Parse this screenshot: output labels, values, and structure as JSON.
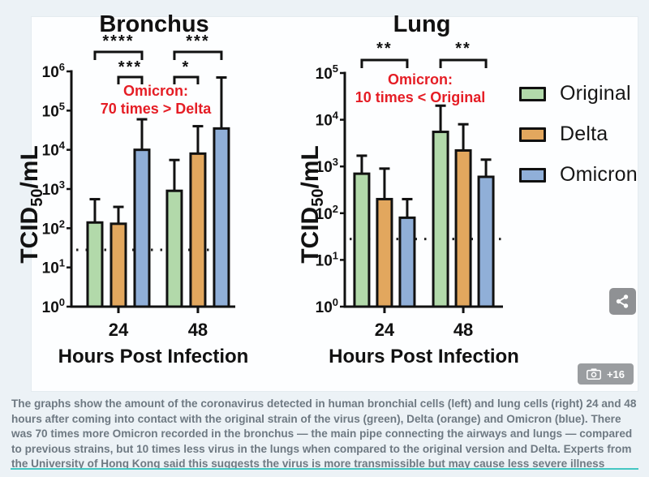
{
  "page": {
    "background": "#ecf2f6",
    "accent_teal": "#43c6c2"
  },
  "chart_data": [
    {
      "type": "bar",
      "title": "Bronchus",
      "xlabel": "Hours Post Infection",
      "ylabel": "TCID50/mL",
      "ylabel_parts": [
        {
          "t": "TCID"
        },
        {
          "t": "50",
          "sub": true
        },
        {
          "t": "/mL"
        }
      ],
      "y_scale": "log10",
      "ylim_exponents": [
        0,
        6
      ],
      "grid": false,
      "categories": [
        "24",
        "48"
      ],
      "series": [
        {
          "name": "Original",
          "color": "#b2d9aa",
          "values": [
            140,
            900
          ],
          "upper_errors": [
            550,
            5500
          ]
        },
        {
          "name": "Delta",
          "color": "#e2a75e",
          "values": [
            130,
            8000
          ],
          "upper_errors": [
            350,
            40000
          ]
        },
        {
          "name": "Omicron",
          "color": "#90afd8",
          "values": [
            10000,
            35000
          ],
          "upper_errors": [
            60000,
            700000
          ]
        }
      ],
      "detection_limit": 28,
      "significance": [
        {
          "category": "24",
          "label": "****",
          "between": [
            "Original",
            "Omicron"
          ],
          "row": 0
        },
        {
          "category": "24",
          "label": "***",
          "between": [
            "Delta",
            "Omicron"
          ],
          "row": 1
        },
        {
          "category": "48",
          "label": "***",
          "between": [
            "Original",
            "Omicron"
          ],
          "row": 0
        },
        {
          "category": "48",
          "label": "*",
          "between": [
            "Original",
            "Delta"
          ],
          "row": 1
        }
      ],
      "annotation": {
        "lines": [
          "Omicron:",
          "70 times > Delta"
        ],
        "color": "#e51d25"
      }
    },
    {
      "type": "bar",
      "title": "Lung",
      "xlabel": "Hours Post Infection",
      "ylabel": "TCID50/mL",
      "ylabel_parts": [
        {
          "t": "TCID"
        },
        {
          "t": "50",
          "sub": true
        },
        {
          "t": "/mL"
        }
      ],
      "y_scale": "log10",
      "ylim_exponents": [
        0,
        5
      ],
      "grid": false,
      "categories": [
        "24",
        "48"
      ],
      "series": [
        {
          "name": "Original",
          "color": "#b2d9aa",
          "values": [
            700,
            5500
          ],
          "upper_errors": [
            1700,
            20000
          ]
        },
        {
          "name": "Delta",
          "color": "#e2a75e",
          "values": [
            200,
            2200
          ],
          "upper_errors": [
            900,
            8000
          ]
        },
        {
          "name": "Omicron",
          "color": "#90afd8",
          "values": [
            80,
            600
          ],
          "upper_errors": [
            200,
            1400
          ]
        }
      ],
      "detection_limit": 28,
      "significance": [
        {
          "category": "24",
          "label": "**",
          "between": [
            "Original",
            "Omicron"
          ],
          "row": 0
        },
        {
          "category": "48",
          "label": "**",
          "between": [
            "Original",
            "Omicron"
          ],
          "row": 0
        }
      ],
      "annotation": {
        "lines": [
          "Omicron:",
          "10 times < Original"
        ],
        "color": "#e51d25"
      }
    }
  ],
  "legend": {
    "position": "right",
    "items": [
      {
        "label": "Original",
        "color": "#b2d9aa"
      },
      {
        "label": "Delta",
        "color": "#e2a75e"
      },
      {
        "label": "Omicron",
        "color": "#90afd8"
      }
    ]
  },
  "overlays": {
    "share_icon": "share-nodes",
    "camera_icon": "camera",
    "photo_count": "+16"
  },
  "caption": {
    "text": "The graphs show the amount of the coronavirus detected in human bronchial cells (left) and lung cells (right) 24 and 48 hours after coming into contact with the original strain of the virus (green), Delta (orange) and Omicron (blue). There was 70 times more Omicron recorded in the bronchus — the main pipe connecting the airways and lungs — compared to previous strains, but 10 times less virus in the lungs when compared to the original version and Delta. Experts from the University of Hong Kong said this suggests the virus is more transmissible but may cause less severe illness"
  }
}
